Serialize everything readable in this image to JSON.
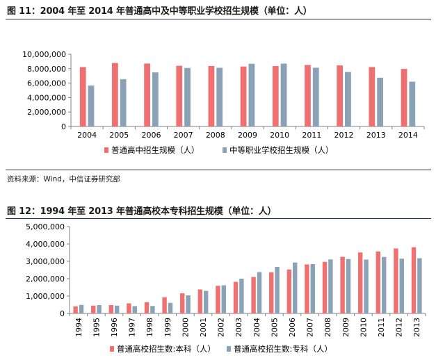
{
  "figures": [
    {
      "title": "图 11：2004 年至 2014 年普通高中及中等职业学校招生规模（单位：人）",
      "source": "资料来源：Wind，中信证券研究部"
    },
    {
      "title": "图 12：1994 年至 2013 年普通高校本专科招生规模（单位：人）"
    }
  ],
  "colors": {
    "red": "#ee7070",
    "blue": "#8ba1b6",
    "rule": "#1b2f5c",
    "axis": "#808080"
  },
  "chart_data": [
    {
      "type": "bar",
      "categories": [
        "2004",
        "2005",
        "2006",
        "2007",
        "2008",
        "2009",
        "2010",
        "2011",
        "2012",
        "2013",
        "2014"
      ],
      "series": [
        {
          "name": "普通高中招生规模（人）",
          "values": [
            8220000,
            8780000,
            8710000,
            8400000,
            8370000,
            8300000,
            8360000,
            8510000,
            8450000,
            8230000,
            7970000
          ]
        },
        {
          "name": "中等职业学校招生规模（人）",
          "values": [
            5660000,
            6550000,
            7480000,
            8100000,
            8120000,
            8680000,
            8700000,
            8130000,
            7540000,
            6750000,
            6200000
          ]
        }
      ],
      "ylim": [
        0,
        10000000
      ],
      "yticks": [
        "0",
        "2,000,000",
        "4,000,000",
        "6,000,000",
        "8,000,000",
        "10,000,000"
      ],
      "legend": "bottom",
      "grid": false
    },
    {
      "type": "bar",
      "categories": [
        "1994",
        "1995",
        "1996",
        "1997",
        "1998",
        "1999",
        "2000",
        "2001",
        "2002",
        "2003",
        "2004",
        "2005",
        "2006",
        "2007",
        "2008",
        "2009",
        "2010",
        "2011",
        "2012",
        "2013"
      ],
      "series": [
        {
          "name": "普通高校招生数:本科（人）",
          "values": [
            410000,
            450000,
            480000,
            580000,
            650000,
            930000,
            1160000,
            1380000,
            1590000,
            1820000,
            2100000,
            2370000,
            2530000,
            2820000,
            2970000,
            3260000,
            3510000,
            3570000,
            3740000,
            3810000
          ]
        },
        {
          "name": "普通高校招生数:专科（人）",
          "values": [
            490000,
            480000,
            450000,
            420000,
            430000,
            610000,
            1040000,
            1300000,
            1620000,
            2000000,
            2380000,
            2680000,
            2930000,
            2840000,
            3110000,
            3130000,
            3100000,
            3250000,
            3150000,
            3180000
          ]
        }
      ],
      "ylim": [
        0,
        5000000
      ],
      "yticks": [
        "0",
        "1,000,000",
        "2,000,000",
        "3,000,000",
        "4,000,000",
        "5,000,000"
      ],
      "legend": "bottom",
      "grid": false
    }
  ]
}
